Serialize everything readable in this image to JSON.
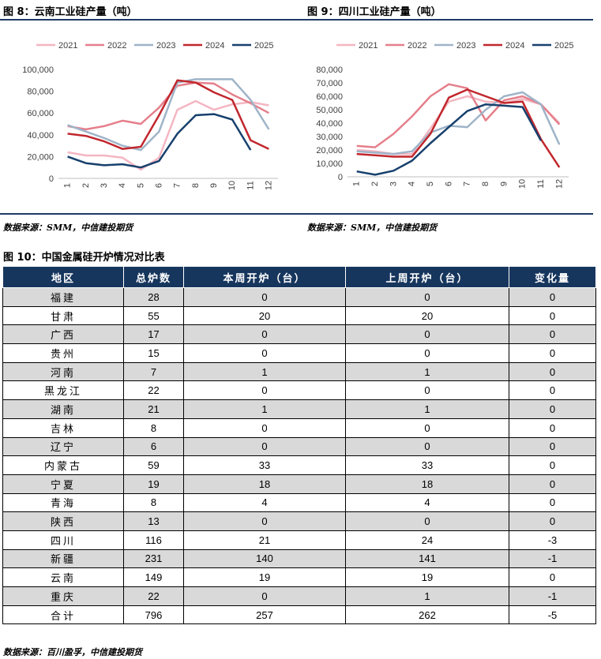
{
  "figures": {
    "fig8_title": "图 8：云南工业硅产量（吨）",
    "fig9_title": "图 9：四川工业硅产量（吨）",
    "fig10_title": "图 10：中国金属硅开炉情况对比表",
    "source1": "数据来源：SMM，中信建投期货",
    "source2": "数据来源：SMM，中信建投期货",
    "source3": "数据来源：百川盈孚，中信建投期货"
  },
  "chart_data": [
    {
      "type": "line",
      "title": "图 8：云南工业硅产量（吨）",
      "x": [
        1,
        2,
        3,
        4,
        5,
        6,
        7,
        8,
        9,
        10,
        11,
        12
      ],
      "ylim": [
        0,
        100000
      ],
      "yticks": [
        0,
        20000,
        40000,
        60000,
        80000,
        100000
      ],
      "ytick_labels": [
        "0",
        "20,000",
        "40,000",
        "60,000",
        "80,000",
        "100,000"
      ],
      "legend_position": "top",
      "grid": false,
      "series": [
        {
          "name": "2021",
          "color": "#f4b6c2",
          "values": [
            24000,
            21000,
            21000,
            19000,
            8000,
            19000,
            63000,
            71000,
            63000,
            68000,
            70000,
            67000
          ]
        },
        {
          "name": "2022",
          "color": "#e57f8b",
          "values": [
            48000,
            45000,
            48000,
            53000,
            50000,
            65000,
            85000,
            88000,
            87000,
            77000,
            69000,
            60000
          ]
        },
        {
          "name": "2023",
          "color": "#9fb4c8",
          "values": [
            49000,
            43000,
            37000,
            30000,
            26000,
            43000,
            88000,
            91000,
            91000,
            91000,
            72000,
            45000
          ]
        },
        {
          "name": "2024",
          "color": "#c1272d",
          "values": [
            41000,
            39000,
            34000,
            27000,
            29000,
            58000,
            90000,
            88000,
            79000,
            72000,
            35000,
            27000
          ]
        },
        {
          "name": "2025",
          "color": "#17406d",
          "values": [
            20000,
            14000,
            12000,
            13000,
            10000,
            16000,
            41000,
            58000,
            59000,
            54000,
            26000,
            null
          ]
        }
      ]
    },
    {
      "type": "line",
      "title": "图 9：四川工业硅产量（吨）",
      "x": [
        1,
        2,
        3,
        4,
        5,
        6,
        7,
        8,
        9,
        10,
        11,
        12
      ],
      "ylim": [
        0,
        80000
      ],
      "yticks": [
        0,
        10000,
        20000,
        30000,
        40000,
        50000,
        60000,
        70000,
        80000
      ],
      "ytick_labels": [
        "0",
        "10,000",
        "20,000",
        "30,000",
        "40,000",
        "50,000",
        "60,000",
        "70,000",
        "80,000"
      ],
      "legend_position": "top",
      "grid": false,
      "series": [
        {
          "name": "2021",
          "color": "#f4b6c2",
          "values": [
            20000,
            19000,
            17000,
            17000,
            36000,
            56000,
            60000,
            56000,
            55000,
            58000,
            54000,
            40000
          ]
        },
        {
          "name": "2022",
          "color": "#e57f8b",
          "values": [
            23000,
            22000,
            32000,
            45000,
            60000,
            69000,
            66000,
            42000,
            57000,
            60000,
            54000,
            39000
          ]
        },
        {
          "name": "2023",
          "color": "#9fb4c8",
          "values": [
            19000,
            18000,
            17000,
            19000,
            33000,
            38000,
            37000,
            50000,
            60000,
            63000,
            54000,
            24000
          ]
        },
        {
          "name": "2024",
          "color": "#c1272d",
          "values": [
            17000,
            16000,
            15000,
            15000,
            32000,
            59000,
            65000,
            60000,
            55000,
            56000,
            28000,
            7000
          ]
        },
        {
          "name": "2025",
          "color": "#17406d",
          "values": [
            4000,
            1500,
            4500,
            12000,
            25000,
            37000,
            49000,
            54000,
            53000,
            52000,
            27000,
            null
          ]
        }
      ]
    }
  ],
  "table": {
    "headers": [
      "地区",
      "总炉数",
      "本周开炉（台）",
      "上周开炉（台）",
      "变化量"
    ],
    "rows": [
      [
        "福建",
        "28",
        "0",
        "0",
        "0"
      ],
      [
        "甘肃",
        "55",
        "20",
        "20",
        "0"
      ],
      [
        "广西",
        "17",
        "0",
        "0",
        "0"
      ],
      [
        "贵州",
        "15",
        "0",
        "0",
        "0"
      ],
      [
        "河南",
        "7",
        "1",
        "1",
        "0"
      ],
      [
        "黑龙江",
        "22",
        "0",
        "0",
        "0"
      ],
      [
        "湖南",
        "21",
        "1",
        "1",
        "0"
      ],
      [
        "吉林",
        "8",
        "0",
        "0",
        "0"
      ],
      [
        "辽宁",
        "6",
        "0",
        "0",
        "0"
      ],
      [
        "内蒙古",
        "59",
        "33",
        "33",
        "0"
      ],
      [
        "宁夏",
        "19",
        "18",
        "18",
        "0"
      ],
      [
        "青海",
        "8",
        "4",
        "4",
        "0"
      ],
      [
        "陕西",
        "13",
        "0",
        "0",
        "0"
      ],
      [
        "四川",
        "116",
        "21",
        "24",
        "-3"
      ],
      [
        "新疆",
        "231",
        "140",
        "141",
        "-1"
      ],
      [
        "云南",
        "149",
        "19",
        "19",
        "0"
      ],
      [
        "重庆",
        "22",
        "0",
        "1",
        "-1"
      ],
      [
        "合计",
        "796",
        "257",
        "262",
        "-5"
      ]
    ]
  }
}
